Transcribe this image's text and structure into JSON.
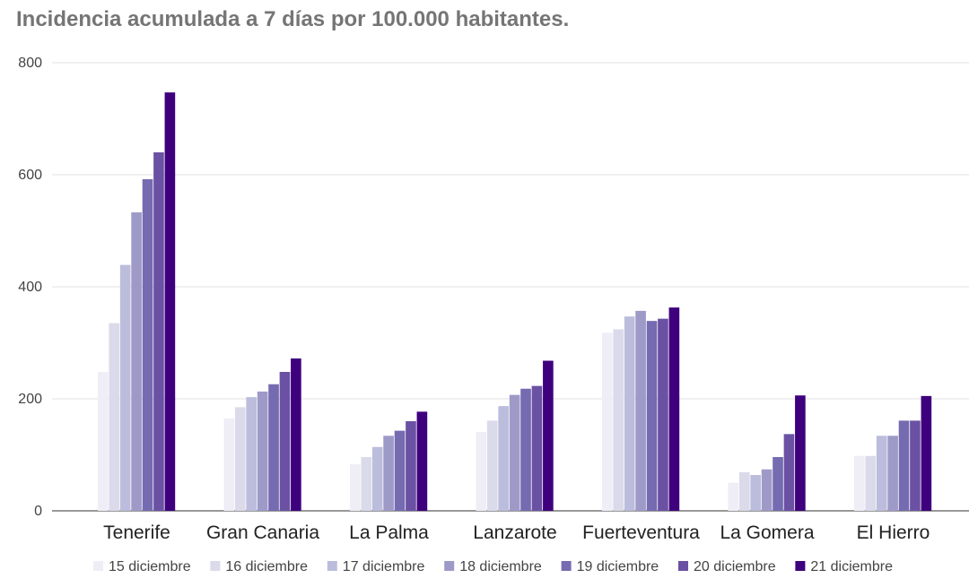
{
  "chart_data": {
    "type": "bar",
    "title": "Incidencia acumulada a 7 días por 100.000 habitantes.",
    "xlabel": "",
    "ylabel": "",
    "ylim": [
      0,
      800
    ],
    "yticks": [
      "0",
      "200",
      "400",
      "600",
      "800"
    ],
    "grid": true,
    "legend_position": "bottom",
    "categories": [
      "Tenerife",
      "Gran Canaria",
      "La Palma",
      "Lanzarote",
      "Fuerteventura",
      "La Gomera",
      "El Hierro"
    ],
    "series": [
      {
        "name": "15 diciembre",
        "color": "#efedf5",
        "values": [
          248,
          165,
          83,
          141,
          318,
          50,
          98
        ]
      },
      {
        "name": "16 diciembre",
        "color": "#dadaeb",
        "values": [
          335,
          185,
          96,
          161,
          324,
          69,
          98
        ]
      },
      {
        "name": "17 diciembre",
        "color": "#bcbddc",
        "values": [
          439,
          203,
          114,
          187,
          347,
          64,
          134
        ]
      },
      {
        "name": "18 diciembre",
        "color": "#9e9ac8",
        "values": [
          533,
          213,
          134,
          207,
          357,
          74,
          134
        ]
      },
      {
        "name": "19 diciembre",
        "color": "#756bb1",
        "values": [
          592,
          226,
          143,
          218,
          339,
          96,
          161
        ]
      },
      {
        "name": "20 diciembre",
        "color": "#6a51a3",
        "values": [
          640,
          248,
          160,
          223,
          343,
          137,
          161
        ]
      },
      {
        "name": "21 diciembre",
        "color": "#3f007d",
        "values": [
          747,
          272,
          177,
          268,
          363,
          206,
          205
        ]
      }
    ]
  }
}
